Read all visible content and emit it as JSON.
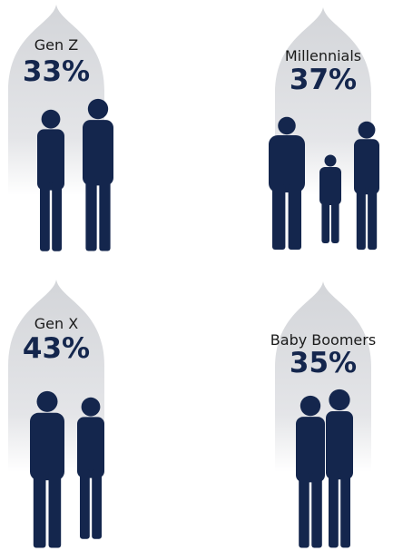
{
  "chart_data": {
    "type": "pictogram",
    "categories": [
      "Gen Z",
      "Millennials",
      "Gen X",
      "Baby Boomers"
    ],
    "values": [
      33,
      37,
      43,
      35
    ],
    "value_labels": [
      "33%",
      "37%",
      "43%",
      "35%"
    ],
    "color": "#14264d"
  }
}
